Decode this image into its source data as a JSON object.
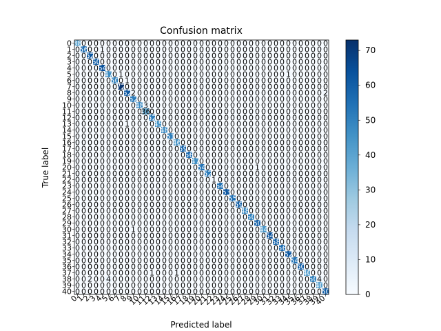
{
  "chart_data": {
    "type": "heatmap",
    "title": "Confusion matrix",
    "xlabel": "Predicted label",
    "ylabel": "True label",
    "categories": [
      "0",
      "1",
      "2",
      "3",
      "4",
      "5",
      "6",
      "7",
      "8",
      "9",
      "10",
      "11",
      "12",
      "13",
      "14",
      "15",
      "16",
      "17",
      "18",
      "19",
      "20",
      "21",
      "22",
      "23",
      "24",
      "25",
      "26",
      "27",
      "28",
      "29",
      "30",
      "31",
      "32",
      "33",
      "34",
      "35",
      "36",
      "37",
      "38",
      "39",
      "40"
    ],
    "diagonal": [
      38,
      56,
      62,
      60,
      64,
      47,
      50,
      72,
      62,
      52,
      48,
      36,
      52,
      45,
      48,
      51,
      46,
      59,
      56,
      47,
      54,
      52,
      68,
      54,
      63,
      55,
      59,
      48,
      50,
      60,
      44,
      64,
      58,
      56,
      62,
      54,
      60,
      40,
      50,
      40,
      60
    ],
    "off_diagonal": [
      {
        "row": 1,
        "col": 4,
        "value": 1
      },
      {
        "row": 5,
        "col": 7,
        "value": 1
      },
      {
        "row": 5,
        "col": 34,
        "value": 1
      },
      {
        "row": 8,
        "col": 9,
        "value": 2
      },
      {
        "row": 8,
        "col": 40,
        "value": 2
      },
      {
        "row": 6,
        "col": 8,
        "value": 1
      },
      {
        "row": 10,
        "col": 11,
        "value": 3
      },
      {
        "row": 13,
        "col": 8,
        "value": 1
      },
      {
        "row": 20,
        "col": 29,
        "value": 1
      },
      {
        "row": 22,
        "col": 22,
        "value": 1
      },
      {
        "row": 30,
        "col": 9,
        "value": 1
      },
      {
        "row": 37,
        "col": 12,
        "value": 1
      },
      {
        "row": 37,
        "col": 16,
        "value": 1
      },
      {
        "row": 38,
        "col": 2,
        "value": 2
      },
      {
        "row": 38,
        "col": 5,
        "value": 4
      },
      {
        "row": 38,
        "col": 39,
        "value": 4
      }
    ],
    "colorbar": {
      "min": 0,
      "max": 73,
      "ticks": [
        0,
        10,
        20,
        30,
        40,
        50,
        60,
        70
      ],
      "colormap": "Blues",
      "low_color": "#f7fbff",
      "high_color": "#08306b"
    }
  }
}
